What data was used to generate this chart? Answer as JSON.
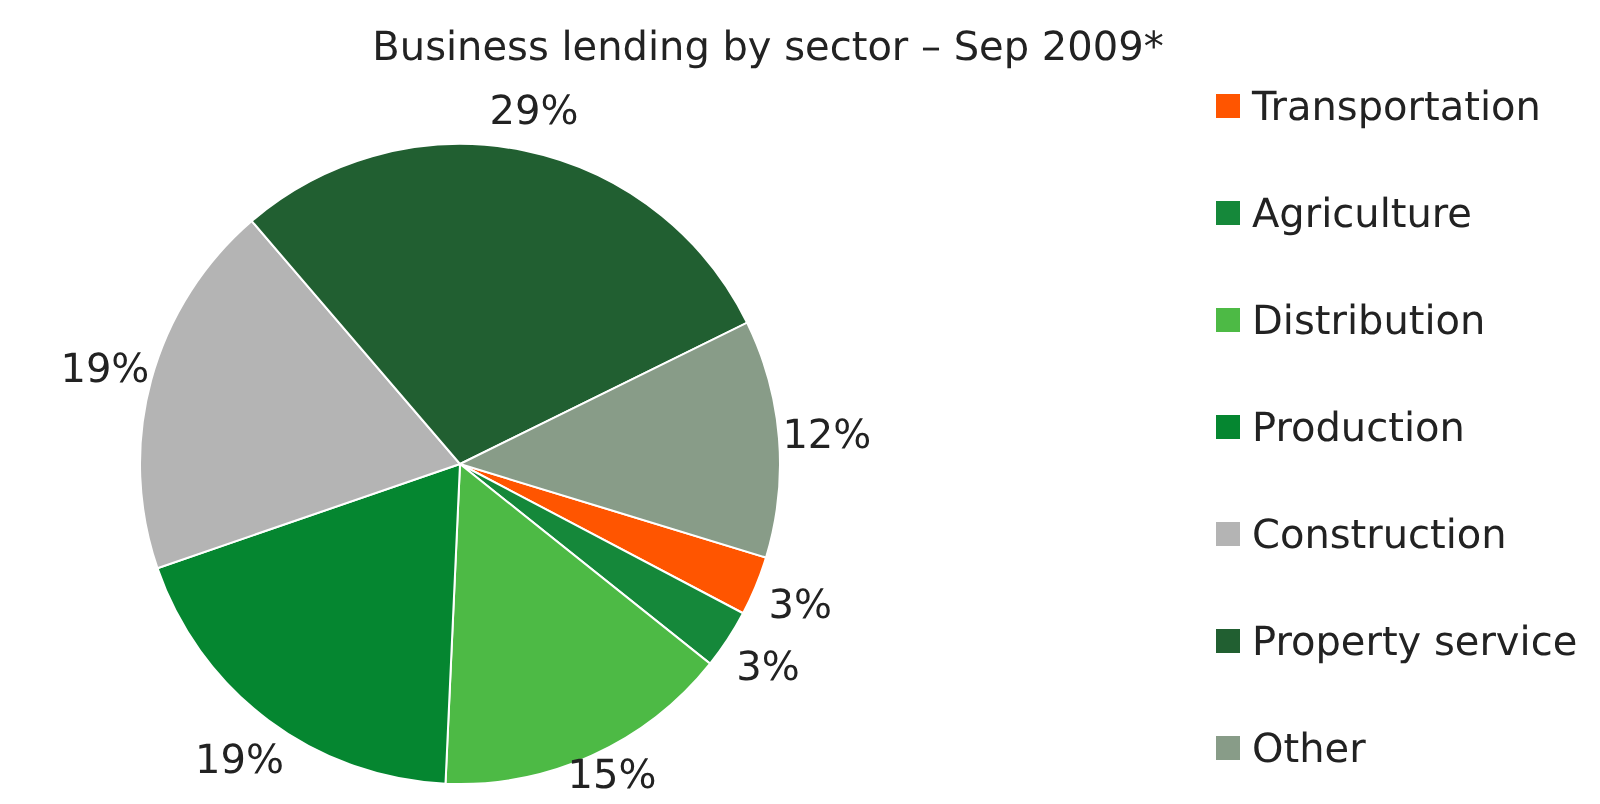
{
  "chart_data": {
    "type": "pie",
    "title": "Business lending by sector – Sep 2009*",
    "categories": [
      "Transportation",
      "Agriculture",
      "Distribution",
      "Production",
      "Construction",
      "Property service",
      "Other"
    ],
    "values": [
      3,
      3,
      15,
      19,
      19,
      29,
      12
    ],
    "value_labels": [
      "3%",
      "3%",
      "15%",
      "19%",
      "19%",
      "29%",
      "12%"
    ],
    "colors": [
      "#ff5500",
      "#15883a",
      "#4dba45",
      "#058630",
      "#b4b4b4",
      "#215f31",
      "#889c88"
    ],
    "legend": "right"
  }
}
